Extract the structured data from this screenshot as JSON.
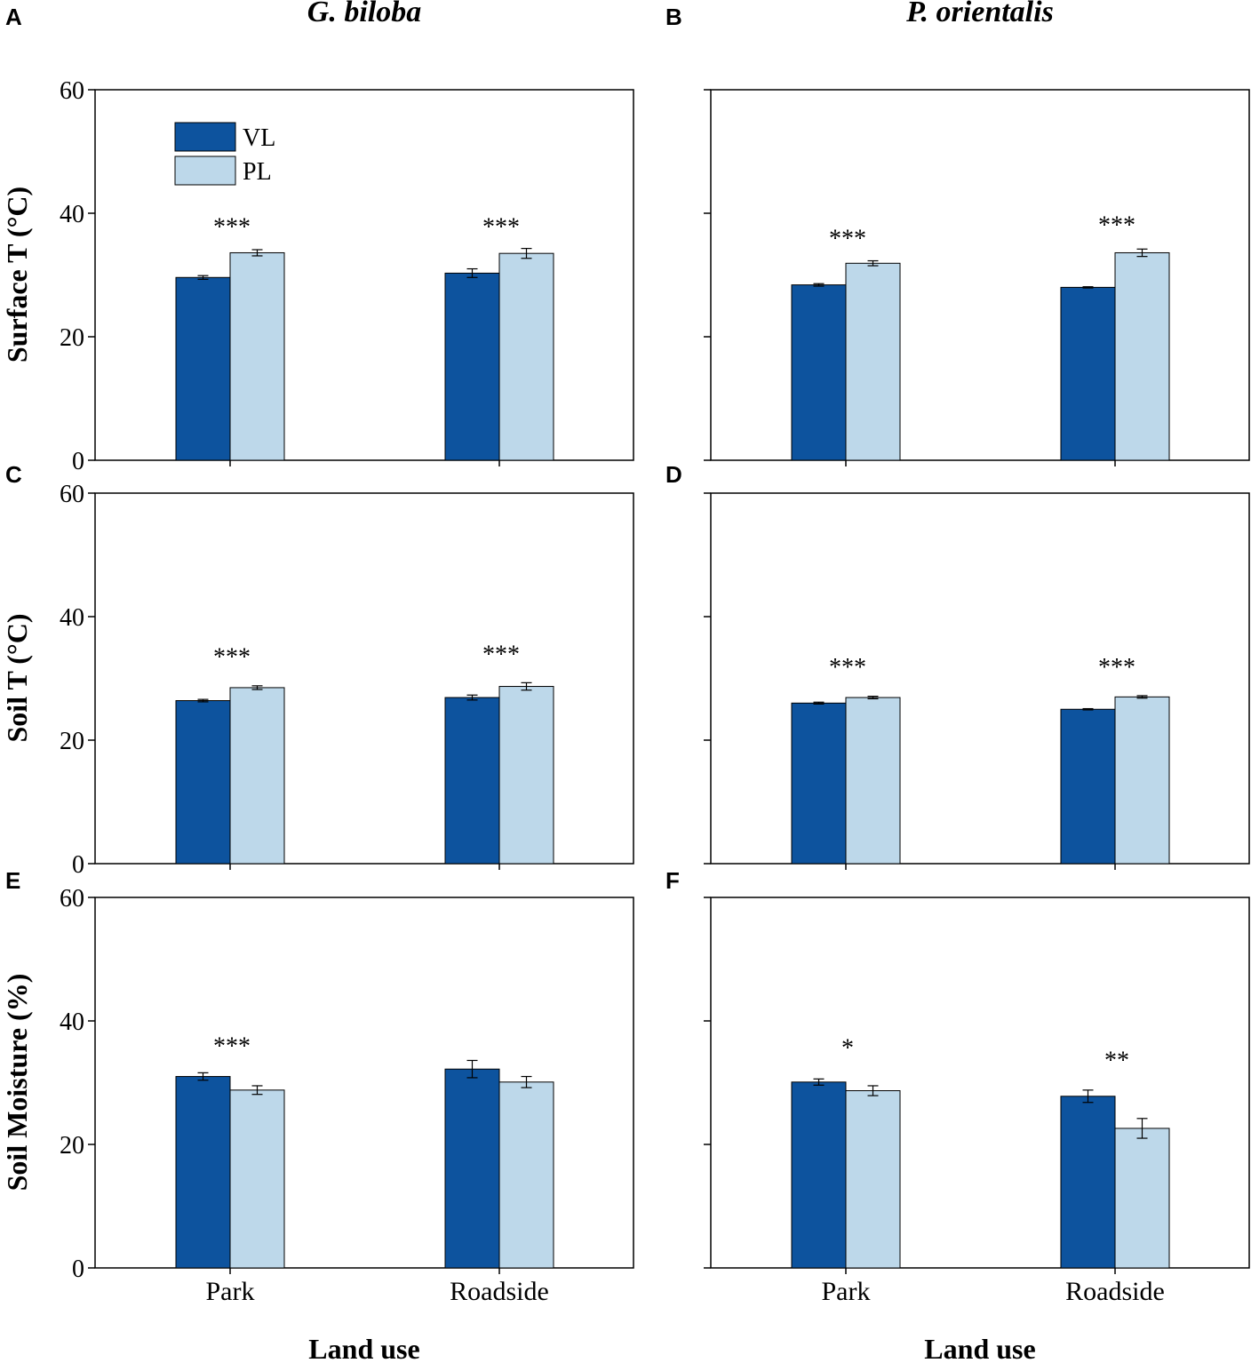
{
  "colors": {
    "VL": "#0d539e",
    "PL": "#bdd8ea",
    "axis": "#000000"
  },
  "column_titles": [
    "G. biloba",
    "P. orientalis"
  ],
  "row_labels": [
    "Surface T (°C)",
    "Soil T (°C)",
    "Soil Moisture (%)"
  ],
  "x_axis_title": "Land use",
  "legend": [
    "VL",
    "PL"
  ],
  "chart_data": [
    {
      "panel": "A",
      "type": "bar",
      "species": "G. biloba",
      "ylabel": "Surface T (°C)",
      "categories": [
        "Park",
        "Roadside"
      ],
      "ylim": [
        0,
        60
      ],
      "yticks": [
        0,
        20,
        40,
        60
      ],
      "show_tick_labels": true,
      "show_category_labels": false,
      "series": [
        {
          "name": "VL",
          "values": [
            29.6,
            30.3
          ],
          "errors": [
            0.3,
            0.7
          ]
        },
        {
          "name": "PL",
          "values": [
            33.6,
            33.5
          ],
          "errors": [
            0.5,
            0.8
          ]
        }
      ],
      "significance": [
        "***",
        "***"
      ],
      "sig_y": [
        38.5,
        38.5
      ]
    },
    {
      "panel": "B",
      "type": "bar",
      "species": "P. orientalis",
      "ylabel": "Surface T (°C)",
      "categories": [
        "Park",
        "Roadside"
      ],
      "ylim": [
        0,
        60
      ],
      "yticks": [
        0,
        20,
        40,
        60
      ],
      "show_tick_labels": false,
      "show_category_labels": false,
      "series": [
        {
          "name": "VL",
          "values": [
            28.4,
            28.0
          ],
          "errors": [
            0.2,
            0.1
          ]
        },
        {
          "name": "PL",
          "values": [
            31.9,
            33.6
          ],
          "errors": [
            0.4,
            0.6
          ]
        }
      ],
      "significance": [
        "***",
        "***"
      ],
      "sig_y": [
        36.6,
        38.8
      ]
    },
    {
      "panel": "C",
      "type": "bar",
      "species": "G. biloba",
      "ylabel": "Soil T (°C)",
      "categories": [
        "Park",
        "Roadside"
      ],
      "ylim": [
        0,
        60
      ],
      "yticks": [
        0,
        20,
        40,
        60
      ],
      "show_tick_labels": true,
      "show_category_labels": false,
      "series": [
        {
          "name": "VL",
          "values": [
            26.4,
            26.9
          ],
          "errors": [
            0.2,
            0.4
          ]
        },
        {
          "name": "PL",
          "values": [
            28.5,
            28.7
          ],
          "errors": [
            0.3,
            0.6
          ]
        }
      ],
      "significance": [
        "***",
        "***"
      ],
      "sig_y": [
        34.2,
        34.6
      ]
    },
    {
      "panel": "D",
      "type": "bar",
      "species": "P. orientalis",
      "ylabel": "Soil T (°C)",
      "categories": [
        "Park",
        "Roadside"
      ],
      "ylim": [
        0,
        60
      ],
      "yticks": [
        0,
        20,
        40,
        60
      ],
      "show_tick_labels": false,
      "show_category_labels": false,
      "series": [
        {
          "name": "VL",
          "values": [
            26.0,
            25.0
          ],
          "errors": [
            0.15,
            0.1
          ]
        },
        {
          "name": "PL",
          "values": [
            26.9,
            27.0
          ],
          "errors": [
            0.2,
            0.2
          ]
        }
      ],
      "significance": [
        "***",
        "***"
      ],
      "sig_y": [
        32.5,
        32.5
      ]
    },
    {
      "panel": "E",
      "type": "bar",
      "species": "G. biloba",
      "ylabel": "Soil Moisture (%)",
      "categories": [
        "Park",
        "Roadside"
      ],
      "ylim": [
        0,
        60
      ],
      "yticks": [
        0,
        20,
        40,
        60
      ],
      "show_tick_labels": true,
      "show_category_labels": true,
      "series": [
        {
          "name": "VL",
          "values": [
            31.0,
            32.2
          ],
          "errors": [
            0.6,
            1.4
          ]
        },
        {
          "name": "PL",
          "values": [
            28.8,
            30.1
          ],
          "errors": [
            0.7,
            0.9
          ]
        }
      ],
      "significance": [
        "***",
        ""
      ],
      "sig_y": [
        36.6,
        36.6
      ]
    },
    {
      "panel": "F",
      "type": "bar",
      "species": "P. orientalis",
      "ylabel": "Soil Moisture (%)",
      "categories": [
        "Park",
        "Roadside"
      ],
      "ylim": [
        0,
        60
      ],
      "yticks": [
        0,
        20,
        40,
        60
      ],
      "show_tick_labels": false,
      "show_category_labels": true,
      "series": [
        {
          "name": "VL",
          "values": [
            30.1,
            27.8
          ],
          "errors": [
            0.5,
            1.0
          ]
        },
        {
          "name": "PL",
          "values": [
            28.7,
            22.6
          ],
          "errors": [
            0.8,
            1.6
          ]
        }
      ],
      "significance": [
        "*",
        "**"
      ],
      "sig_y": [
        36.3,
        34.3
      ]
    }
  ]
}
